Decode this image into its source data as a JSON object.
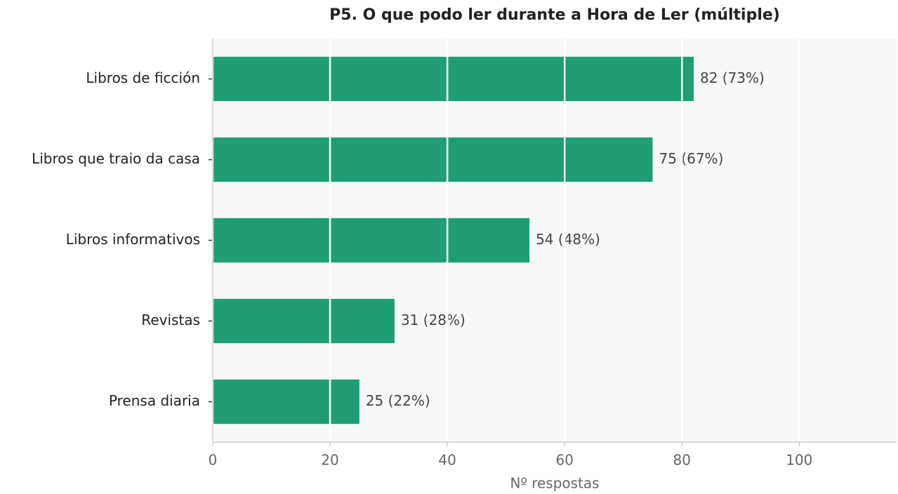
{
  "chart_data": {
    "type": "bar",
    "orientation": "horizontal",
    "title": "P5. O que podo ler durante a Hora de Ler (múltiple)",
    "xlabel": "Nº respostas",
    "categories": [
      "Libros de ficción",
      "Libros que traio da casa",
      "Libros informativos",
      "Revistas",
      "Prensa diaria"
    ],
    "values": [
      82,
      75,
      54,
      31,
      25
    ],
    "value_labels": [
      "82  (73%)",
      "75  (67%)",
      "54  (48%)",
      "31  (28%)",
      "25  (22%)"
    ],
    "color": "#1f9e76",
    "xlim": [
      0,
      116.6
    ],
    "xticks": [
      0,
      20,
      40,
      60,
      80,
      100
    ],
    "grid": true
  }
}
